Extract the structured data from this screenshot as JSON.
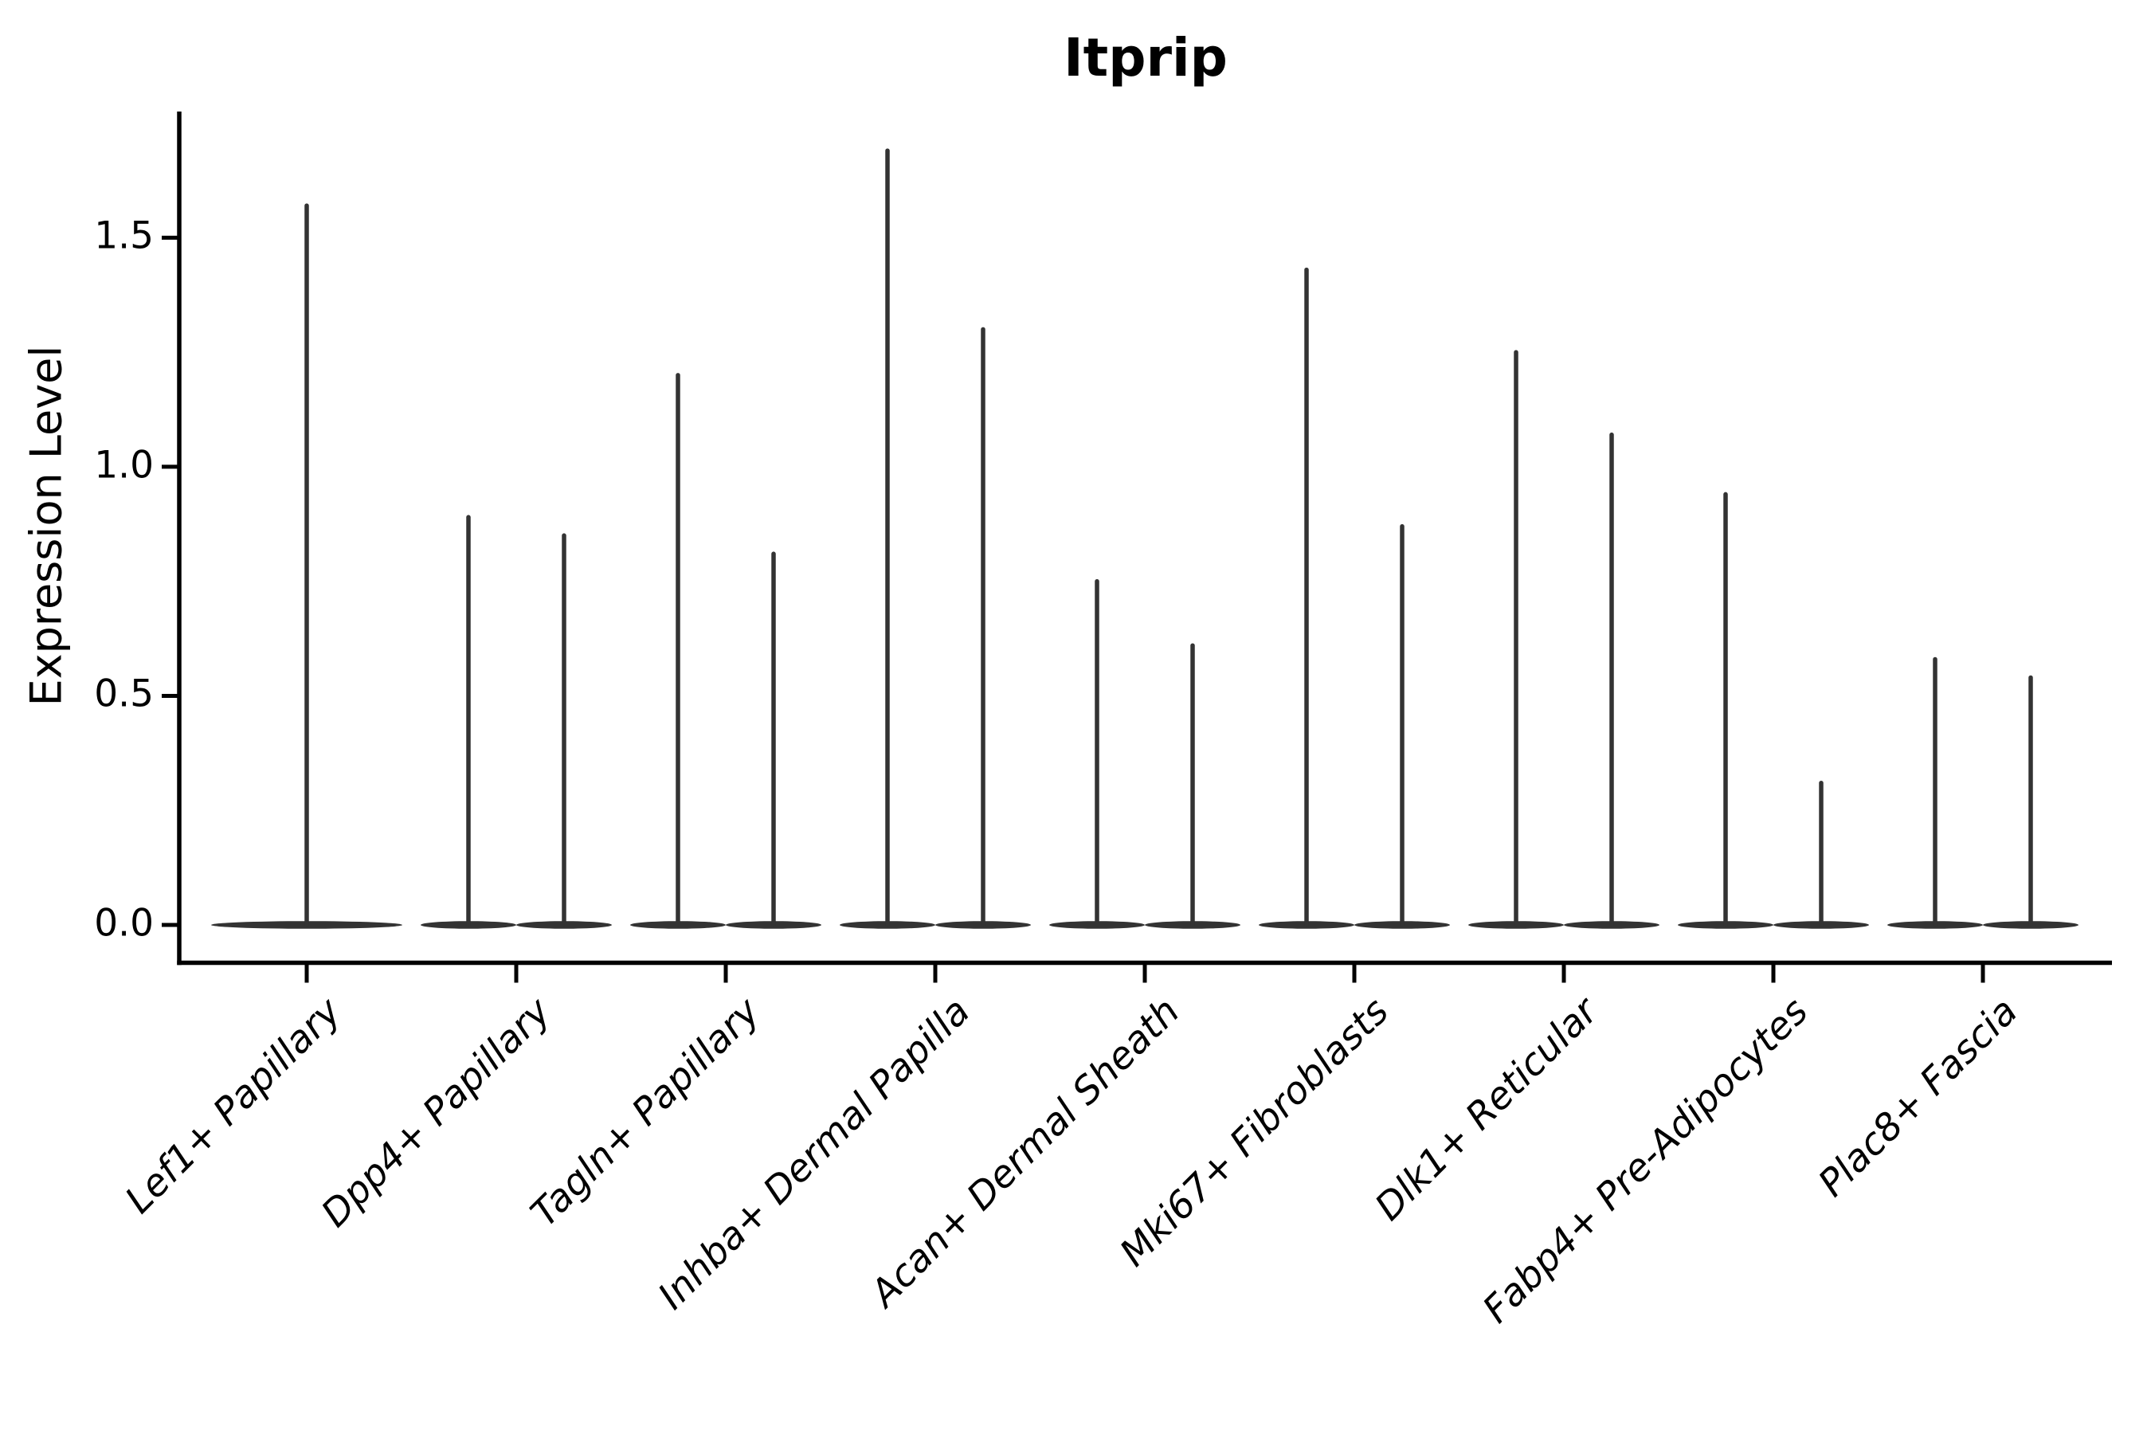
{
  "chart_data": {
    "type": "violin",
    "title": "Itprip",
    "ylabel": "Expression Level",
    "xlabel": "",
    "grid": false,
    "legend": false,
    "ylim": [
      -0.08,
      1.78
    ],
    "yticks": [
      {
        "label": "0.0",
        "value": 0.0
      },
      {
        "label": "0.5",
        "value": 0.5
      },
      {
        "label": "1.0",
        "value": 1.0
      },
      {
        "label": "1.5",
        "value": 1.5
      }
    ],
    "categories": [
      "Lef1+ Papillary",
      "Dpp4+ Papillary",
      "Tagln+ Papillary",
      "Inhba+ Dermal Papilla",
      "Acan+ Dermal Sheath",
      "Mki67+ Fibroblasts",
      "Dlk1+ Reticular",
      "Fabp4+ Pre-Adipocytes",
      "Plac8+ Fascia"
    ],
    "violins": [
      {
        "category": "Lef1+ Papillary",
        "groups": [
          {
            "offset": 0,
            "half_width": 120,
            "max": 1.57
          }
        ]
      },
      {
        "category": "Dpp4+ Papillary",
        "groups": [
          {
            "offset": -60,
            "half_width": 60,
            "max": 0.89
          },
          {
            "offset": 60,
            "half_width": 60,
            "max": 0.85
          }
        ]
      },
      {
        "category": "Tagln+ Papillary",
        "groups": [
          {
            "offset": -60,
            "half_width": 60,
            "max": 1.2
          },
          {
            "offset": 60,
            "half_width": 60,
            "max": 0.81
          }
        ]
      },
      {
        "category": "Inhba+ Dermal Papilla",
        "groups": [
          {
            "offset": -60,
            "half_width": 60,
            "max": 1.69
          },
          {
            "offset": 60,
            "half_width": 60,
            "max": 1.3
          }
        ]
      },
      {
        "category": "Acan+ Dermal Sheath",
        "groups": [
          {
            "offset": -60,
            "half_width": 60,
            "max": 0.75
          },
          {
            "offset": 60,
            "half_width": 60,
            "max": 0.61
          }
        ]
      },
      {
        "category": "Mki67+ Fibroblasts",
        "groups": [
          {
            "offset": -60,
            "half_width": 60,
            "max": 1.43
          },
          {
            "offset": 60,
            "half_width": 60,
            "max": 0.87
          }
        ]
      },
      {
        "category": "Dlk1+ Reticular",
        "groups": [
          {
            "offset": -60,
            "half_width": 60,
            "max": 1.25
          },
          {
            "offset": 60,
            "half_width": 60,
            "max": 1.07
          }
        ]
      },
      {
        "category": "Fabp4+ Pre-Adipocytes",
        "groups": [
          {
            "offset": -60,
            "half_width": 60,
            "max": 0.94
          },
          {
            "offset": 60,
            "half_width": 60,
            "max": 0.31
          }
        ]
      },
      {
        "category": "Plac8+ Fascia",
        "groups": [
          {
            "offset": -60,
            "half_width": 60,
            "max": 0.58
          },
          {
            "offset": 60,
            "half_width": 60,
            "max": 0.54
          }
        ]
      }
    ],
    "colors": {
      "violin_line": "#333333",
      "axis": "#000000",
      "text": "#000000",
      "background": "#ffffff"
    }
  }
}
